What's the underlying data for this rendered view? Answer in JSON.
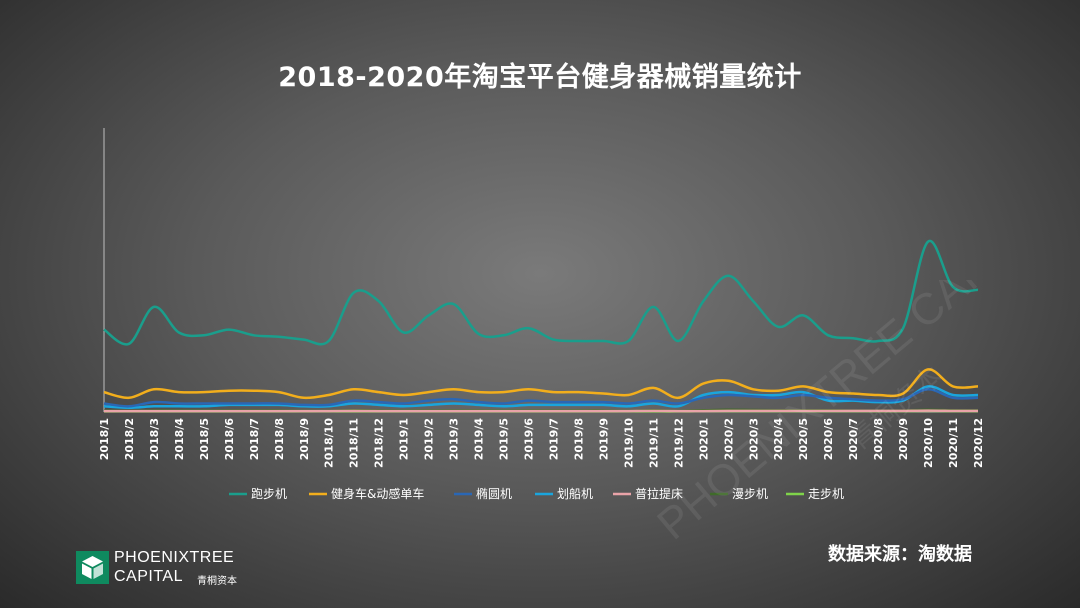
{
  "chart_data": {
    "type": "line",
    "title": "2018-2020年淘宝平台健身器械销量统计",
    "xlabel": "",
    "ylabel": "",
    "ylim": [
      0,
      100
    ],
    "grid": false,
    "legend_position": "bottom",
    "categories": [
      "2018/1",
      "2018/2",
      "2018/3",
      "2018/4",
      "2018/5",
      "2018/6",
      "2018/7",
      "2018/8",
      "2018/9",
      "2018/10",
      "2018/11",
      "2018/12",
      "2019/1",
      "2019/2",
      "2019/3",
      "2019/4",
      "2019/5",
      "2019/6",
      "2019/7",
      "2019/8",
      "2019/9",
      "2019/10",
      "2019/11",
      "2019/12",
      "2020/1",
      "2020/2",
      "2020/3",
      "2020/4",
      "2020/5",
      "2020/6",
      "2020/7",
      "2020/8",
      "2020/9",
      "2020/10",
      "2020/11",
      "2020/12"
    ],
    "series": [
      {
        "name": "跑步机",
        "color": "#1a9e8c",
        "values": [
          29,
          24,
          37,
          28,
          27,
          29,
          27,
          26.5,
          25.5,
          25,
          42,
          39,
          28,
          34,
          38,
          27.5,
          27,
          29.5,
          25.5,
          25,
          25,
          25,
          37,
          25,
          39,
          48,
          39,
          30,
          34,
          27,
          26,
          25,
          29.5,
          60,
          44,
          43
        ]
      },
      {
        "name": "健身车&动感单车",
        "color": "#f2ae1c",
        "values": [
          7,
          5,
          8,
          7,
          7,
          7.5,
          7.5,
          7,
          5,
          6,
          8,
          7,
          6,
          7,
          8,
          7,
          7,
          8,
          7,
          7,
          6.5,
          6,
          8.5,
          5,
          10,
          11,
          8,
          7.5,
          9,
          7,
          6.5,
          6,
          6.5,
          15,
          9,
          9
        ]
      },
      {
        "name": "椭圆机",
        "color": "#2a67b5",
        "values": [
          3,
          2,
          3.5,
          3,
          3,
          3,
          3,
          3,
          2.5,
          2.5,
          4,
          3.5,
          3,
          4,
          4.5,
          3.5,
          3,
          4,
          3.5,
          3.5,
          3.5,
          3,
          4,
          3,
          5,
          6,
          5.5,
          5,
          6,
          5,
          4.5,
          4,
          4.5,
          8,
          5,
          5
        ]
      },
      {
        "name": "划船机",
        "color": "#1aa5dd",
        "values": [
          2,
          1.5,
          2,
          2,
          2,
          2.5,
          2.5,
          2.5,
          2,
          2,
          3,
          2.5,
          2,
          2.5,
          3,
          2.5,
          2,
          2.5,
          2.5,
          2.5,
          2.5,
          2,
          3,
          2,
          6,
          7,
          6,
          6,
          7,
          4,
          4,
          3.5,
          4,
          9,
          6,
          6
        ]
      },
      {
        "name": "普拉提床",
        "color": "#e9a3a8",
        "values": [
          0.3,
          0.3,
          0.3,
          0.3,
          0.3,
          0.3,
          0.3,
          0.3,
          0.3,
          0.3,
          0.4,
          0.3,
          0.3,
          0.3,
          0.3,
          0.3,
          0.3,
          0.3,
          0.3,
          0.3,
          0.3,
          0.3,
          0.4,
          0.3,
          0.3,
          0.4,
          0.4,
          0.4,
          0.4,
          0.4,
          0.4,
          0.4,
          0.4,
          0.5,
          0.4,
          0.4
        ]
      },
      {
        "name": "漫步机",
        "color": "#3f6b2a",
        "values": [
          0.5,
          0.4,
          0.5,
          0.5,
          0.5,
          0.5,
          0.5,
          0.5,
          0.4,
          0.4,
          0.6,
          0.5,
          0.5,
          0.5,
          0.5,
          0.5,
          0.5,
          0.5,
          0.5,
          0.5,
          0.5,
          0.4,
          0.6,
          0.4,
          0.6,
          0.8,
          0.7,
          0.6,
          0.6,
          0.6,
          0.5,
          0.5,
          0.5,
          0.8,
          0.6,
          0.6
        ]
      },
      {
        "name": "走步机",
        "color": "#7fd34a",
        "values": [
          0.2,
          0.2,
          0.2,
          0.2,
          0.2,
          0.2,
          0.2,
          0.2,
          0.2,
          0.2,
          0.2,
          0.2,
          0.2,
          0.2,
          0.2,
          0.2,
          0.2,
          0.2,
          0.2,
          0.2,
          0.2,
          0.2,
          0.2,
          0.2,
          0.3,
          0.3,
          0.3,
          0.3,
          0.3,
          0.3,
          0.3,
          0.3,
          0.3,
          0.4,
          0.3,
          0.3
        ]
      }
    ]
  },
  "source_text": "数据来源：淘数据",
  "logo": {
    "name": "PHOENIXTREE",
    "capital": "CAPITAL",
    "cn": "青桐资本"
  },
  "watermark": {
    "text": "PHOENIXTREE CAPITAL",
    "cn": "青桐资本"
  }
}
